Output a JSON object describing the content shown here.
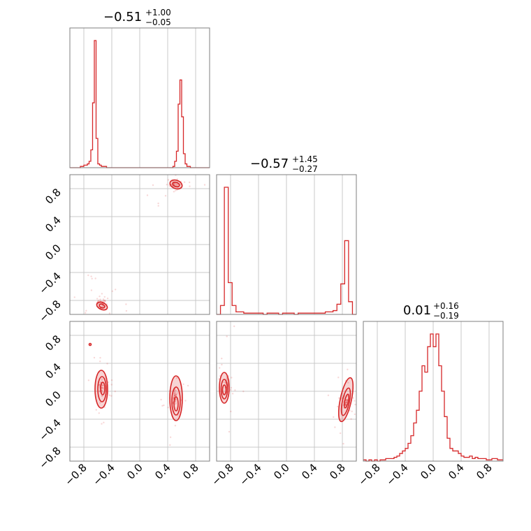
{
  "chart_data": {
    "type": "corner",
    "color": "#d62728",
    "axis_range": [
      -1.0,
      1.0
    ],
    "ticks": [
      -0.8,
      -0.4,
      0.0,
      0.4,
      0.8
    ],
    "tick_labels": [
      "−0.8",
      "−0.4",
      "0.0",
      "0.4",
      "0.8"
    ],
    "grid": true,
    "titles": [
      {
        "value": "−0.51",
        "plus": "+1.00",
        "minus": "−0.05"
      },
      {
        "value": "−0.57",
        "plus": "+1.45",
        "minus": "−0.27"
      },
      {
        "value": "0.01",
        "plus": "+0.16",
        "minus": "−0.19"
      }
    ],
    "histograms": [
      {
        "param": 0,
        "x_range": [
          -1.0,
          1.0
        ],
        "counts": [
          0,
          0,
          0,
          0,
          0,
          0,
          1,
          1,
          2,
          2,
          3,
          5,
          14,
          51,
          100,
          23,
          3,
          2,
          1,
          1,
          1,
          0,
          0,
          0,
          0,
          0,
          0,
          0,
          0,
          0,
          0,
          0,
          0,
          0,
          0,
          0,
          0,
          0,
          0,
          0,
          0,
          0,
          0,
          0,
          0,
          0,
          0,
          0,
          0,
          0,
          0,
          0,
          0,
          0,
          0,
          0,
          0,
          0,
          0,
          1,
          5,
          13,
          50,
          69,
          40,
          11,
          3,
          1,
          1,
          0,
          0,
          0,
          0,
          0,
          0,
          0,
          0,
          0,
          0,
          0
        ]
      },
      {
        "param": 1,
        "x_range": [
          -1.0,
          1.0
        ],
        "counts": [
          0,
          7,
          100,
          25,
          7,
          2,
          2,
          1,
          1,
          1,
          1,
          1,
          0,
          1,
          1,
          1,
          0,
          1,
          1,
          1,
          0,
          1,
          1,
          1,
          1,
          1,
          1,
          1,
          2,
          2,
          3,
          8,
          24,
          58,
          10,
          0
        ]
      },
      {
        "param": 2,
        "x_range": [
          -1.0,
          1.0
        ],
        "counts": [
          1,
          0,
          1,
          0,
          1,
          0,
          1,
          1,
          2,
          2,
          2,
          3,
          4,
          6,
          8,
          10,
          14,
          20,
          30,
          40,
          55,
          75,
          70,
          90,
          100,
          90,
          100,
          75,
          55,
          35,
          18,
          10,
          8,
          8,
          6,
          4,
          3,
          3,
          4,
          2,
          3,
          2,
          2,
          2,
          1,
          1,
          2,
          2,
          1,
          1
        ]
      }
    ],
    "scatter": [
      {
        "x_param": 0,
        "y_param": 1,
        "modes": [
          {
            "x": 0.5,
            "y": 0.85
          },
          {
            "x": -0.55,
            "y": -0.85
          }
        ]
      },
      {
        "x_param": 0,
        "y_param": 2,
        "modes": [
          {
            "x": -0.55,
            "y": 0.05
          },
          {
            "x": 0.5,
            "y": -0.1
          }
        ]
      },
      {
        "x_param": 1,
        "y_param": 2,
        "modes": [
          {
            "x": -0.85,
            "y": 0.1
          },
          {
            "x": 0.85,
            "y": -0.15
          }
        ]
      }
    ]
  }
}
